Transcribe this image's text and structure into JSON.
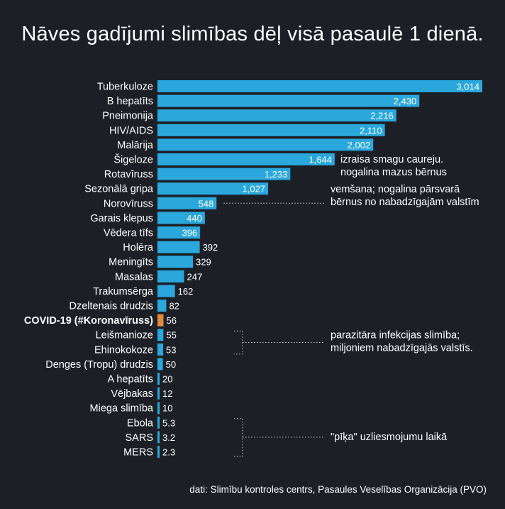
{
  "title": "Nāves gadījumi slimības dēļ visā pasaulē 1 dienā.",
  "footnote": "dati: Slimību kontroles centrs, Pasaules Veselības Organizācija (PVO)",
  "colors": {
    "background": "#1c1f26",
    "bar": "#2aa7dc",
    "bar_highlight": "#e08a3c",
    "highlight_label": "#f0a355",
    "text": "#ffffff"
  },
  "chart_data": {
    "type": "bar",
    "orientation": "horizontal",
    "categories": [
      "Tuberkuloze",
      "B hepatīts",
      "Pneimonija",
      "HIV/AIDS",
      "Malārija",
      "Šigeloze",
      "Rotavīruss",
      "Sezonālā gripa",
      "Norovīruss",
      "Garais klepus",
      "Vēdera tīfs",
      "Holēra",
      "Meningīts",
      "Masalas",
      "Trakumsērga",
      "Dzeltenais drudzis",
      "COVID-19 (#Koronavīruss)",
      "Leišmanioze",
      "Ehinokokoze",
      "Denges (Tropu) drudzis",
      "A hepatīts",
      "Vējbakas",
      "Miega slimība",
      "Ebola",
      "SARS",
      "MERS"
    ],
    "values": [
      3014,
      2430,
      2216,
      2110,
      2002,
      1644,
      1233,
      1027,
      548,
      440,
      396,
      392,
      329,
      247,
      162,
      82,
      56,
      55,
      53,
      50,
      20,
      12,
      10,
      5.3,
      3.2,
      2.3
    ],
    "value_labels": [
      "3,014",
      "2,430",
      "2,216",
      "2,110",
      "2,002",
      "1,644",
      "1,233",
      "1,027",
      "548",
      "440",
      "396",
      "392",
      "329",
      "247",
      "162",
      "82",
      "56",
      "55",
      "53",
      "50",
      "20",
      "12",
      "10",
      "5.3",
      "3.2",
      "2.3"
    ],
    "highlight": "COVID-19 (#Koronavīruss)",
    "xlim": [
      0,
      3014
    ],
    "grid": false,
    "legend": "none",
    "annotations": [
      {
        "text": [
          "izraisa smagu caureju.",
          "nogalina mazus bērnus"
        ],
        "target": "Šigeloze"
      },
      {
        "text": [
          "vemšana; nogalina pārsvarā",
          "bērnus no nabadzīgajām valstīm"
        ],
        "target": "Norovīruss"
      },
      {
        "text": [
          "parazitāra infekcijas slimība;",
          "miljoniem nabadzīgajās valstīs."
        ],
        "target": [
          "Leišmanioze",
          "Ehinokokoze"
        ]
      },
      {
        "text": [
          "\"pīķa\" uzliesmojumu laikā"
        ],
        "target": [
          "Ebola",
          "SARS",
          "MERS"
        ]
      }
    ]
  }
}
